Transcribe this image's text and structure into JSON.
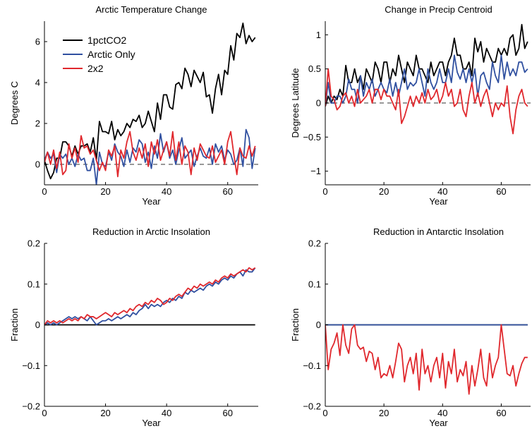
{
  "chart_data": [
    {
      "type": "line",
      "title": "Arctic Temperature Change",
      "xlabel": "Year",
      "ylabel": "Degrees C",
      "xlim": [
        0,
        70
      ],
      "ylim": [
        -1,
        7
      ],
      "xticks": [
        0,
        20,
        40,
        60
      ],
      "yticks": [
        0,
        2,
        4,
        6
      ],
      "grid": false,
      "legend": "top-left",
      "zero_line": {
        "style": "dashed",
        "color": "#999999"
      },
      "series": [
        {
          "name": "1pctCO2",
          "color": "#000000",
          "values": [
            0.2,
            -0.3,
            -0.7,
            -0.4,
            0.3,
            0.3,
            1.1,
            1.1,
            0.9,
            0.4,
            0.9,
            0.5,
            0.9,
            0.9,
            1.0,
            0.6,
            1.3,
            0.2,
            2.1,
            1.6,
            1.6,
            1.5,
            2.1,
            1.2,
            1.7,
            1.4,
            1.6,
            2.0,
            1.8,
            2.2,
            2.1,
            2.4,
            1.8,
            2.0,
            2.6,
            2.1,
            1.6,
            3.0,
            2.2,
            3.4,
            3.4,
            2.8,
            2.7,
            3.9,
            4.0,
            3.7,
            4.7,
            4.4,
            3.8,
            4.6,
            4.3,
            4.0,
            4.5,
            3.3,
            3.4,
            2.5,
            3.7,
            4.4,
            3.4,
            4.6,
            4.4,
            5.8,
            5.1,
            6.4,
            6.2,
            6.9,
            5.9,
            6.3,
            6.0,
            6.2
          ]
        },
        {
          "name": "Arctic Only",
          "color": "#3050a0",
          "values": [
            0.2,
            0.6,
            0.3,
            0.5,
            -0.4,
            0.5,
            0.3,
            0.5,
            0.0,
            0.3,
            -0.1,
            0.5,
            0.2,
            0.3,
            -0.3,
            -0.3,
            0.3,
            -1.0,
            0.6,
            0.0,
            -0.1,
            0.6,
            0.2,
            1.0,
            0.6,
            0.4,
            -0.1,
            0.7,
            0.1,
            0.8,
            0.6,
            1.2,
            1.0,
            0.1,
            0.6,
            -0.2,
            0.9,
            0.3,
            1.5,
            0.6,
            1.1,
            0.3,
            0.7,
            0.0,
            0.7,
            1.3,
            0.3,
            0.5,
            0.7,
            -0.1,
            0.4,
            0.8,
            0.4,
            0.3,
            0.8,
            0.0,
            1.0,
            0.6,
            0.9,
            0.2,
            0.7,
            0.5,
            0.0,
            0.2,
            0.8,
            -0.1,
            1.7,
            1.3,
            -0.2,
            0.8
          ]
        },
        {
          "name": "2x2",
          "color": "#e0282d",
          "values": [
            0.1,
            0.6,
            0.0,
            0.7,
            -0.2,
            0.6,
            -0.5,
            -0.3,
            1.0,
            0.3,
            0.8,
            0.1,
            1.4,
            0.8,
            0.9,
            0.5,
            0.7,
            0.2,
            -0.3,
            0.1,
            -0.3,
            0.7,
            0.4,
            0.9,
            -0.6,
            0.7,
            0.3,
            1.1,
            1.6,
            0.6,
            0.2,
            0.8,
            0.3,
            1.0,
            -0.1,
            1.1,
            0.5,
            1.2,
            0.2,
            0.7,
            1.1,
            0.4,
            1.6,
            0.2,
            1.1,
            0.0,
            0.9,
            0.6,
            -0.5,
            0.8,
            0.2,
            1.0,
            0.7,
            0.4,
            0.3,
            0.9,
            0.1,
            0.4,
            0.7,
            0.0,
            1.1,
            1.6,
            0.5,
            -0.5,
            0.8,
            0.4,
            0.3,
            0.9,
            0.4,
            0.9
          ]
        }
      ]
    },
    {
      "type": "line",
      "title": "Change in Precip Centroid",
      "xlabel": "Year",
      "ylabel": "Degrees Latitude",
      "xlim": [
        0,
        70
      ],
      "ylim": [
        -1.2,
        1.2
      ],
      "xticks": [
        0,
        20,
        40,
        60
      ],
      "yticks": [
        -1,
        -0.5,
        0,
        0.5,
        1
      ],
      "ytick_labels": [
        "−1",
        "−0.5",
        "0",
        "0.5",
        "1"
      ],
      "grid": false,
      "zero_line": {
        "style": "dashed",
        "color": "#999999"
      },
      "series": [
        {
          "color": "#000000",
          "values": [
            -0.05,
            0.1,
            0.0,
            0.1,
            0.05,
            0.2,
            0.1,
            0.55,
            0.3,
            0.3,
            0.5,
            0.3,
            0.4,
            0.2,
            0.5,
            0.4,
            0.3,
            0.6,
            0.5,
            0.3,
            0.6,
            0.6,
            0.3,
            0.5,
            0.4,
            0.7,
            0.5,
            0.3,
            0.6,
            0.5,
            0.4,
            0.7,
            0.5,
            0.5,
            0.4,
            0.3,
            0.6,
            0.4,
            0.5,
            0.6,
            0.6,
            0.4,
            0.6,
            0.7,
            0.95,
            0.7,
            0.7,
            0.5,
            0.5,
            0.6,
            0.4,
            0.95,
            0.75,
            0.9,
            0.6,
            0.8,
            0.7,
            0.6,
            0.6,
            0.8,
            0.7,
            0.8,
            0.7,
            0.95,
            1.0,
            0.7,
            0.8,
            1.15,
            0.8,
            0.9
          ]
        },
        {
          "color": "#3050a0",
          "values": [
            -0.05,
            0.3,
            0.0,
            0.0,
            0.1,
            0.1,
            0.0,
            0.1,
            0.35,
            0.2,
            0.2,
            0.0,
            0.4,
            0.1,
            0.3,
            0.2,
            0.35,
            0.1,
            0.2,
            0.3,
            0.2,
            0.15,
            0.35,
            0.1,
            0.3,
            0.1,
            0.3,
            0.5,
            0.2,
            0.3,
            0.25,
            0.3,
            0.5,
            0.3,
            0.1,
            0.5,
            0.3,
            0.2,
            0.3,
            0.5,
            0.3,
            0.3,
            0.5,
            0.3,
            0.7,
            0.45,
            0.35,
            0.5,
            0.3,
            0.5,
            0.3,
            0.5,
            0.1,
            0.4,
            0.45,
            0.3,
            0.2,
            0.6,
            0.4,
            0.3,
            0.7,
            0.35,
            0.6,
            0.4,
            0.5,
            0.4,
            0.6,
            0.6,
            0.45,
            0.5
          ]
        },
        {
          "color": "#e0282d",
          "values": [
            -0.05,
            0.5,
            0.1,
            0.05,
            -0.1,
            -0.05,
            0.1,
            0.15,
            0.0,
            0.1,
            -0.05,
            0.2,
            0.0,
            0.05,
            0.1,
            0.2,
            0.0,
            0.2,
            0.2,
            0.05,
            0.2,
            0.1,
            0.1,
            0.0,
            -0.1,
            0.2,
            -0.3,
            -0.2,
            -0.05,
            0.1,
            -0.05,
            0.1,
            0.0,
            0.15,
            0.0,
            0.2,
            0.05,
            0.1,
            0.2,
            0.0,
            0.1,
            0.3,
            0.1,
            0.2,
            -0.05,
            0.0,
            0.2,
            -0.1,
            -0.2,
            0.1,
            0.3,
            0.0,
            0.15,
            -0.05,
            0.1,
            0.2,
            0.0,
            -0.2,
            0.0,
            -0.1,
            0.0,
            -0.05,
            0.25,
            -0.2,
            -0.45,
            -0.1,
            0.1,
            0.2,
            0.0,
            -0.05
          ]
        }
      ]
    },
    {
      "type": "line",
      "title": "Reduction in Arctic Insolation",
      "xlabel": "Year",
      "ylabel": "Fraction",
      "xlim": [
        0,
        70
      ],
      "ylim": [
        -0.2,
        0.2
      ],
      "xticks": [
        0,
        20,
        40,
        60
      ],
      "yticks": [
        -0.2,
        -0.1,
        0,
        0.1,
        0.2
      ],
      "ytick_labels": [
        "−0.2",
        "−0.1",
        "0",
        "0.1",
        "0.2"
      ],
      "grid": false,
      "series": [
        {
          "color": "#000000",
          "values": [
            0,
            0,
            0,
            0,
            0,
            0,
            0,
            0,
            0,
            0,
            0,
            0,
            0,
            0,
            0,
            0,
            0,
            0,
            0,
            0,
            0,
            0,
            0,
            0,
            0,
            0,
            0,
            0,
            0,
            0,
            0,
            0,
            0,
            0,
            0,
            0,
            0,
            0,
            0,
            0,
            0,
            0,
            0,
            0,
            0,
            0,
            0,
            0,
            0,
            0,
            0,
            0,
            0,
            0,
            0,
            0,
            0,
            0,
            0,
            0,
            0,
            0,
            0,
            0,
            0,
            0,
            0,
            0,
            0,
            0
          ]
        },
        {
          "color": "#3050a0",
          "values": [
            0.0,
            0.005,
            0.0,
            0.005,
            0.0,
            0.005,
            0.01,
            0.015,
            0.02,
            0.015,
            0.02,
            0.015,
            0.02,
            0.015,
            0.01,
            0.02,
            0.01,
            0.0,
            0.005,
            0.01,
            0.01,
            0.015,
            0.01,
            0.015,
            0.02,
            0.015,
            0.02,
            0.025,
            0.02,
            0.03,
            0.025,
            0.035,
            0.04,
            0.05,
            0.04,
            0.05,
            0.045,
            0.05,
            0.045,
            0.055,
            0.06,
            0.055,
            0.065,
            0.06,
            0.07,
            0.065,
            0.08,
            0.075,
            0.085,
            0.08,
            0.085,
            0.09,
            0.085,
            0.095,
            0.1,
            0.095,
            0.105,
            0.1,
            0.11,
            0.115,
            0.11,
            0.12,
            0.115,
            0.125,
            0.13,
            0.12,
            0.135,
            0.13,
            0.13,
            0.14
          ]
        },
        {
          "color": "#e0282d",
          "values": [
            0.0,
            0.01,
            0.005,
            0.01,
            0.005,
            0.01,
            0.005,
            0.01,
            0.015,
            0.01,
            0.015,
            0.01,
            0.02,
            0.015,
            0.025,
            0.02,
            0.02,
            0.015,
            0.02,
            0.025,
            0.03,
            0.025,
            0.02,
            0.03,
            0.025,
            0.03,
            0.035,
            0.03,
            0.04,
            0.035,
            0.045,
            0.05,
            0.045,
            0.055,
            0.05,
            0.06,
            0.055,
            0.065,
            0.06,
            0.05,
            0.055,
            0.065,
            0.06,
            0.07,
            0.075,
            0.07,
            0.08,
            0.09,
            0.085,
            0.095,
            0.09,
            0.1,
            0.095,
            0.1,
            0.105,
            0.1,
            0.11,
            0.105,
            0.115,
            0.12,
            0.115,
            0.125,
            0.12,
            0.125,
            0.13,
            0.135,
            0.13,
            0.14,
            0.135,
            0.14
          ]
        }
      ]
    },
    {
      "type": "line",
      "title": "Reduction in Antarctic Insolation",
      "xlabel": "Year",
      "ylabel": "Fraction",
      "xlim": [
        0,
        70
      ],
      "ylim": [
        -0.2,
        0.2
      ],
      "xticks": [
        0,
        20,
        40,
        60
      ],
      "yticks": [
        -0.2,
        -0.1,
        0,
        0.1,
        0.2
      ],
      "ytick_labels": [
        "−0.2",
        "−0.1",
        "0",
        "0.1",
        "0.2"
      ],
      "grid": false,
      "series": [
        {
          "color": "#000000",
          "values": [
            0,
            0,
            0,
            0,
            0,
            0,
            0,
            0,
            0,
            0,
            0,
            0,
            0,
            0,
            0,
            0,
            0,
            0,
            0,
            0,
            0,
            0,
            0,
            0,
            0,
            0,
            0,
            0,
            0,
            0,
            0,
            0,
            0,
            0,
            0,
            0,
            0,
            0,
            0,
            0,
            0,
            0,
            0,
            0,
            0,
            0,
            0,
            0,
            0,
            0,
            0,
            0,
            0,
            0,
            0,
            0,
            0,
            0,
            0,
            0,
            0,
            0,
            0,
            0,
            0,
            0,
            0,
            0,
            0,
            0
          ]
        },
        {
          "color": "#3050a0",
          "values": [
            0,
            0,
            0,
            0,
            0,
            0,
            0,
            0,
            0,
            0,
            0,
            0,
            0,
            0,
            0,
            0,
            0,
            0,
            0,
            0,
            0,
            0,
            0,
            0,
            0,
            0,
            0,
            0,
            0,
            0,
            0,
            0,
            0,
            0,
            0,
            0,
            0,
            0,
            0,
            0,
            0,
            0,
            0,
            0,
            0,
            0,
            0,
            0,
            0,
            0,
            0,
            0,
            0,
            0,
            0,
            0,
            0,
            0,
            0,
            0,
            0,
            0,
            0,
            0,
            0,
            0,
            0,
            0,
            0,
            0
          ]
        },
        {
          "color": "#e0282d",
          "values": [
            0.0,
            -0.11,
            -0.06,
            -0.045,
            -0.02,
            -0.075,
            0.0,
            -0.05,
            -0.07,
            -0.01,
            0.0,
            -0.05,
            -0.06,
            -0.055,
            -0.09,
            -0.065,
            -0.07,
            -0.11,
            -0.08,
            -0.13,
            -0.12,
            -0.125,
            -0.1,
            -0.13,
            -0.09,
            -0.045,
            -0.06,
            -0.14,
            -0.1,
            -0.08,
            -0.12,
            -0.07,
            -0.16,
            -0.06,
            -0.12,
            -0.1,
            -0.14,
            -0.1,
            -0.08,
            -0.13,
            -0.07,
            -0.155,
            -0.09,
            -0.12,
            -0.06,
            -0.14,
            -0.11,
            -0.125,
            -0.09,
            -0.17,
            -0.1,
            -0.15,
            -0.11,
            -0.06,
            -0.13,
            -0.15,
            -0.07,
            -0.13,
            -0.1,
            -0.08,
            0.0,
            -0.06,
            -0.12,
            -0.125,
            -0.1,
            -0.15,
            -0.12,
            -0.095,
            -0.08,
            -0.08
          ]
        }
      ]
    }
  ]
}
